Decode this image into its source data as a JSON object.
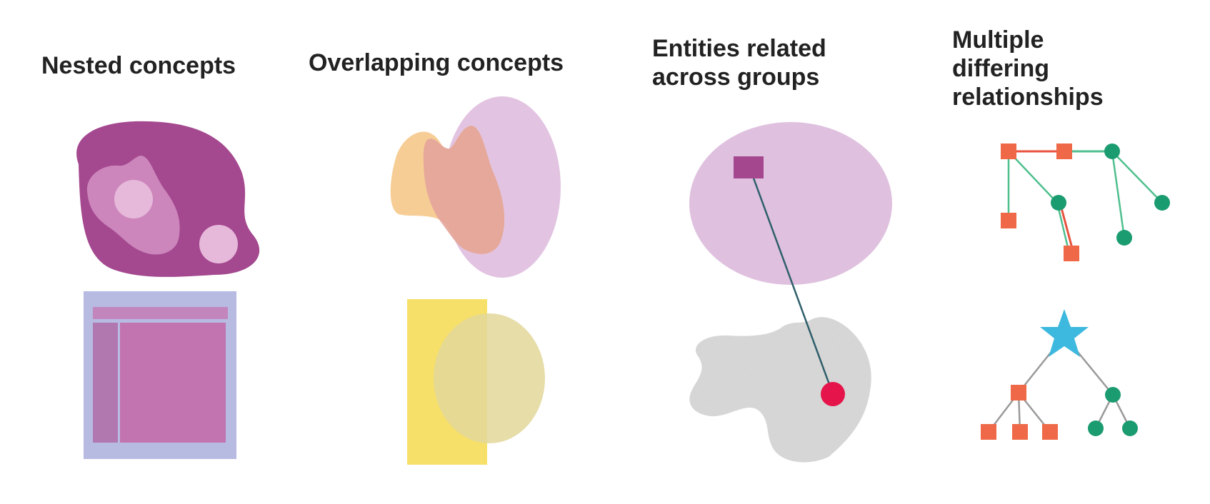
{
  "panels": [
    {
      "heading_lines": [
        "Nested concepts"
      ]
    },
    {
      "heading_lines": [
        "Overlapping concepts"
      ]
    },
    {
      "heading_lines": [
        "Entities related",
        "across groups"
      ]
    },
    {
      "heading_lines": [
        "Multiple",
        "differing",
        "relationships"
      ]
    }
  ],
  "colors": {
    "nested_outer": "#a4488f",
    "nested_middle": "#cc86bc",
    "nested_inner": "#e6b8da",
    "ui_frame": "#b7bbe2",
    "ui_bar": "#c286bd",
    "ui_sidebar": "#b178b0",
    "ui_content": "#c174af",
    "overlap_ellipse": "#e2c3e1",
    "overlap_orange": "#f6c98d",
    "overlap_brown": "#e3a49a",
    "overlap_yellow": "#f7e06a",
    "overlap_circle": "#e2d79a",
    "group_ellipse": "#dfc1df",
    "group_square": "#a5478f",
    "link_line": "#2f5f6b",
    "cloud_gray": "#dcdcdc",
    "red_dot": "#e5144a",
    "orange_node": "#ef6847",
    "green_node": "#1b9b70",
    "green_edge": "#4fbf8e",
    "red_edge": "#e8523e",
    "gray_edge": "#9a9a9a",
    "star": "#3db8de"
  },
  "icons": {
    "panel4_root": "star-icon"
  }
}
